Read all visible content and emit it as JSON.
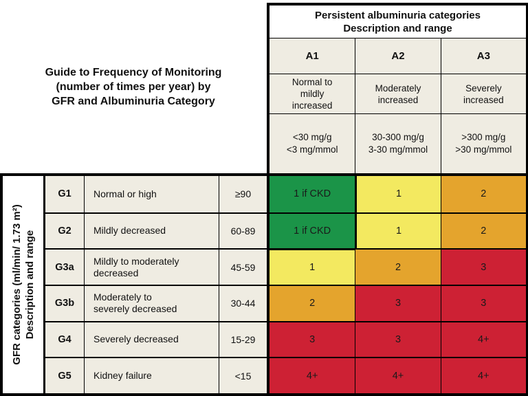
{
  "figure": {
    "title_lines": [
      "Guide to Frequency of Monitoring",
      "(number of times per year) by",
      "GFR and Albuminuria Category"
    ]
  },
  "albuminuria": {
    "header_lines": [
      "Persistent albuminuria categories",
      "Description and range"
    ],
    "columns": [
      {
        "code": "A1",
        "desc_lines": [
          "Normal to",
          "mildly",
          "increased"
        ],
        "range_lines": [
          "<30 mg/g",
          "<3 mg/mmol"
        ]
      },
      {
        "code": "A2",
        "desc_lines": [
          "Moderately",
          "increased"
        ],
        "range_lines": [
          "30-300 mg/g",
          "3-30 mg/mmol"
        ]
      },
      {
        "code": "A3",
        "desc_lines": [
          "Severely",
          "increased"
        ],
        "range_lines": [
          ">300 mg/g",
          ">30 mg/mmol"
        ]
      }
    ]
  },
  "gfr": {
    "axis_label_lines": [
      "GFR categories (ml/min/ 1.73 m²)",
      "Description and range"
    ],
    "rows": [
      {
        "code": "G1",
        "desc_lines": [
          "Normal or high"
        ],
        "range": "≥90"
      },
      {
        "code": "G2",
        "desc_lines": [
          "Mildly decreased"
        ],
        "range": "60-89"
      },
      {
        "code": "G3a",
        "desc_lines": [
          "Mildly to moderately",
          "decreased"
        ],
        "range": "45-59"
      },
      {
        "code": "G3b",
        "desc_lines": [
          "Moderately to",
          "severely decreased"
        ],
        "range": "30-44"
      },
      {
        "code": "G4",
        "desc_lines": [
          "Severely decreased"
        ],
        "range": "15-29"
      },
      {
        "code": "G5",
        "desc_lines": [
          "Kidney failure"
        ],
        "range": "<15"
      }
    ]
  },
  "grid": {
    "cells": [
      [
        {
          "label": "1 if CKD",
          "color": "#1B9448"
        },
        {
          "label": "1",
          "color": "#F3E960"
        },
        {
          "label": "2",
          "color": "#E4A42D"
        }
      ],
      [
        {
          "label": "1 if CKD",
          "color": "#1B9448"
        },
        {
          "label": "1",
          "color": "#F3E960"
        },
        {
          "label": "2",
          "color": "#E4A42D"
        }
      ],
      [
        {
          "label": "1",
          "color": "#F3E960"
        },
        {
          "label": "2",
          "color": "#E4A42D"
        },
        {
          "label": "3",
          "color": "#CD2134"
        }
      ],
      [
        {
          "label": "2",
          "color": "#E4A42D"
        },
        {
          "label": "3",
          "color": "#CD2134"
        },
        {
          "label": "3",
          "color": "#CD2134"
        }
      ],
      [
        {
          "label": "3",
          "color": "#CD2134"
        },
        {
          "label": "3",
          "color": "#CD2134"
        },
        {
          "label": "4+",
          "color": "#CD2134"
        }
      ],
      [
        {
          "label": "4+",
          "color": "#CD2134"
        },
        {
          "label": "4+",
          "color": "#CD2134"
        },
        {
          "label": "4+",
          "color": "#CD2134"
        }
      ]
    ]
  },
  "colors": {
    "green": "#1B9448",
    "yellow": "#F3E960",
    "orange": "#E4A42D",
    "red": "#CD2134",
    "cell_background": "#EFECE2",
    "border": "#000000"
  },
  "chart_data": {
    "type": "heatmap",
    "title": "Guide to Frequency of Monitoring (number of times per year) by GFR and Albuminuria Category",
    "x_axis_label": "Persistent albuminuria categories - Description and range",
    "y_axis_label": "GFR categories (ml/min/ 1.73 m²) - Description and range",
    "columns": [
      {
        "code": "A1",
        "description": "Normal to mildly increased",
        "range": "<30 mg/g, <3 mg/mmol"
      },
      {
        "code": "A2",
        "description": "Moderately increased",
        "range": "30-300 mg/g, 3-30 mg/mmol"
      },
      {
        "code": "A3",
        "description": "Severely increased",
        "range": ">300 mg/g, >30 mg/mmol"
      }
    ],
    "rows": [
      {
        "code": "G1",
        "description": "Normal or high",
        "range": "≥90"
      },
      {
        "code": "G2",
        "description": "Mildly decreased",
        "range": "60-89"
      },
      {
        "code": "G3a",
        "description": "Mildly to moderately decreased",
        "range": "45-59"
      },
      {
        "code": "G3b",
        "description": "Moderately to severely decreased",
        "range": "30-44"
      },
      {
        "code": "G4",
        "description": "Severely decreased",
        "range": "15-29"
      },
      {
        "code": "G5",
        "description": "Kidney failure",
        "range": "<15"
      }
    ],
    "values": [
      [
        "1 if CKD",
        "1",
        "2"
      ],
      [
        "1 if CKD",
        "1",
        "2"
      ],
      [
        "1",
        "2",
        "3"
      ],
      [
        "2",
        "3",
        "3"
      ],
      [
        "3",
        "3",
        "4+"
      ],
      [
        "4+",
        "4+",
        "4+"
      ]
    ],
    "cell_colors": [
      [
        "green",
        "yellow",
        "orange"
      ],
      [
        "green",
        "yellow",
        "orange"
      ],
      [
        "yellow",
        "orange",
        "red"
      ],
      [
        "orange",
        "red",
        "red"
      ],
      [
        "red",
        "red",
        "red"
      ],
      [
        "red",
        "red",
        "red"
      ]
    ],
    "color_hex": {
      "green": "#1B9448",
      "yellow": "#F3E960",
      "orange": "#E4A42D",
      "red": "#CD2134"
    },
    "legend_position": "none",
    "grid": "on"
  }
}
